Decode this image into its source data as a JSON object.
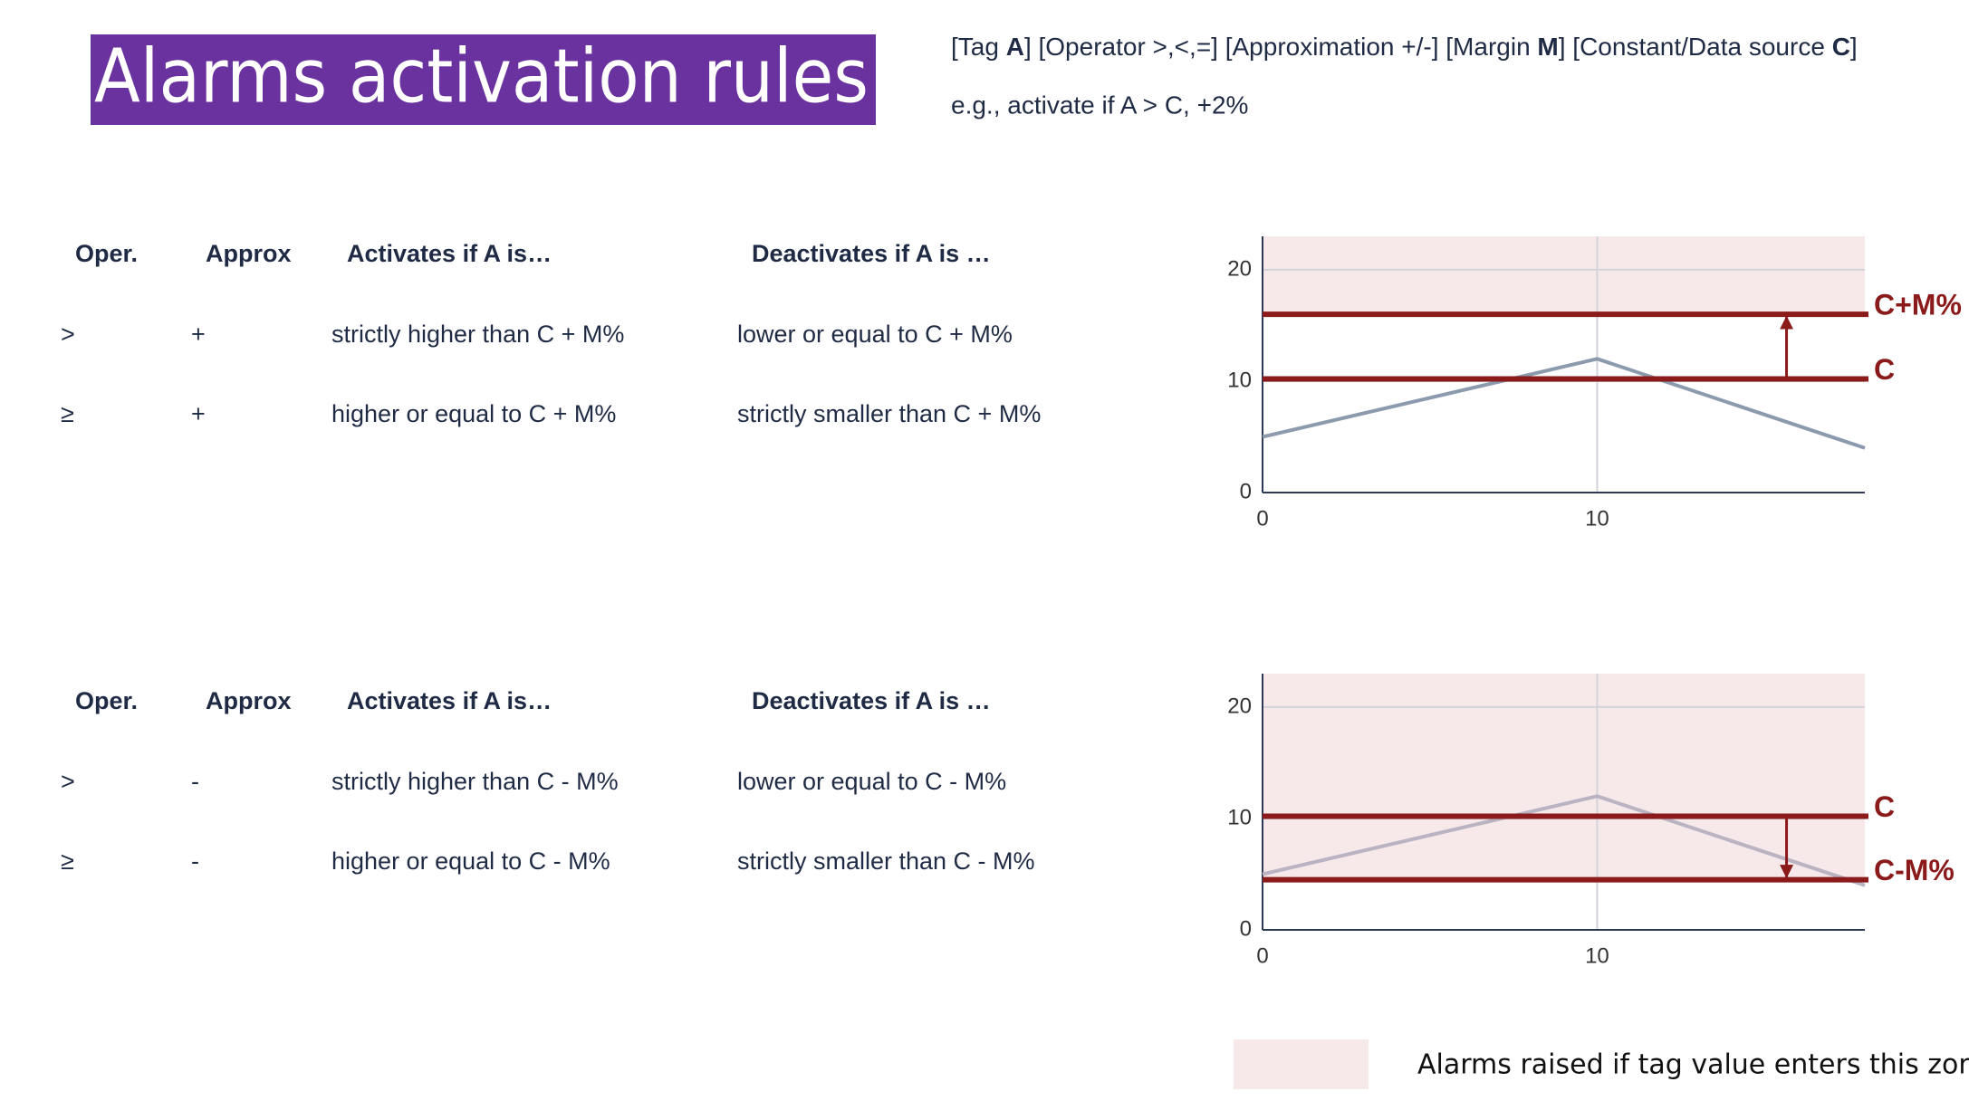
{
  "title": "Alarms activation rules",
  "syntax": [
    "[Tag ",
    "A",
    "] [Operator >,<,=] [Approximation +/-] [Margin ",
    "M",
    "] [Constant/Data source ",
    "C",
    "]"
  ],
  "example": "e.g., activate if A > C, +2%",
  "tables": [
    {
      "header": [
        "Oper.",
        "Approx",
        "Activates if A is…",
        "Deactivates if A is …"
      ],
      "rows": [
        [
          ">",
          "+",
          "strictly higher than C + M%",
          "lower or equal to C + M%"
        ],
        [
          "≥",
          "+",
          "higher or equal to C + M%",
          "strictly smaller than C + M%"
        ]
      ]
    },
    {
      "header": [
        "Oper.",
        "Approx",
        "Activates if A is…",
        "Deactivates if A is …"
      ],
      "rows": [
        [
          ">",
          "-",
          "strictly higher than C - M%",
          "lower or equal to C - M%"
        ],
        [
          "≥",
          "-",
          "higher or equal to C - M%",
          "strictly smaller than C - M%"
        ]
      ]
    }
  ],
  "chart_data": [
    {
      "type": "line",
      "x": [
        0,
        10,
        18
      ],
      "values": [
        5,
        12,
        4
      ],
      "color": "#8c9aae",
      "thresholds": [
        {
          "label": "C+M%",
          "value": 16
        },
        {
          "label": "C",
          "value": 10.2
        }
      ],
      "threshold_color": "#8b1a1a",
      "zone_color": "#f7e9e9",
      "xlim": [
        0,
        18
      ],
      "ylim": [
        0,
        23
      ],
      "xticks": [
        0,
        10
      ],
      "yticks": [
        0,
        10,
        20
      ],
      "grid": true
    },
    {
      "type": "line",
      "x": [
        0,
        10,
        18
      ],
      "values": [
        5,
        12,
        4
      ],
      "color": "#b9b3c2",
      "thresholds": [
        {
          "label": "C-M%",
          "value": 4.5
        },
        {
          "label": "C",
          "value": 10.2
        }
      ],
      "threshold_color": "#8b1a1a",
      "zone_color": "#f7e9e9",
      "xlim": [
        0,
        18
      ],
      "ylim": [
        0,
        23
      ],
      "xticks": [
        0,
        10
      ],
      "yticks": [
        0,
        10,
        20
      ],
      "grid": true
    }
  ],
  "legend": {
    "label": "Alarms raised if tag value enters this zone",
    "color": "#f7e9e9"
  }
}
